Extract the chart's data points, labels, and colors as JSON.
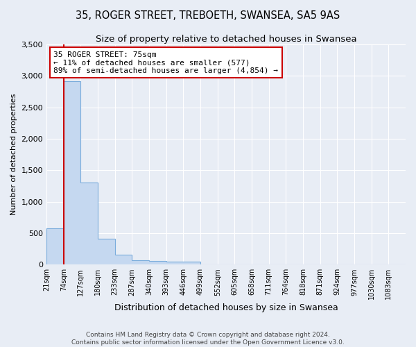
{
  "title": "35, ROGER STREET, TREBOETH, SWANSEA, SA5 9AS",
  "subtitle": "Size of property relative to detached houses in Swansea",
  "xlabel": "Distribution of detached houses by size in Swansea",
  "ylabel": "Number of detached properties",
  "footer_line1": "Contains HM Land Registry data © Crown copyright and database right 2024.",
  "footer_line2": "Contains public sector information licensed under the Open Government Licence v3.0.",
  "bin_labels": [
    "21sqm",
    "74sqm",
    "127sqm",
    "180sqm",
    "233sqm",
    "287sqm",
    "340sqm",
    "393sqm",
    "446sqm",
    "499sqm",
    "552sqm",
    "605sqm",
    "658sqm",
    "711sqm",
    "764sqm",
    "818sqm",
    "871sqm",
    "924sqm",
    "977sqm",
    "1030sqm",
    "1083sqm"
  ],
  "bar_values": [
    577,
    2920,
    1310,
    415,
    155,
    75,
    55,
    50,
    45,
    0,
    0,
    0,
    0,
    0,
    0,
    0,
    0,
    0,
    0,
    0,
    0
  ],
  "bar_color": "#c5d8f0",
  "bar_edge_color": "#7aacdc",
  "annotation_line1": "35 ROGER STREET: 75sqm",
  "annotation_line2": "← 11% of detached houses are smaller (577)",
  "annotation_line3": "89% of semi-detached houses are larger (4,854) →",
  "vline_color": "#cc0000",
  "ylim": [
    0,
    3500
  ],
  "yticks": [
    0,
    500,
    1000,
    1500,
    2000,
    2500,
    3000,
    3500
  ],
  "background_color": "#e8edf5",
  "plot_background": "#e8edf5",
  "grid_color": "#ffffff",
  "annotation_box_color": "#ffffff",
  "annotation_border_color": "#cc0000",
  "title_fontsize": 10.5,
  "subtitle_fontsize": 9.5
}
